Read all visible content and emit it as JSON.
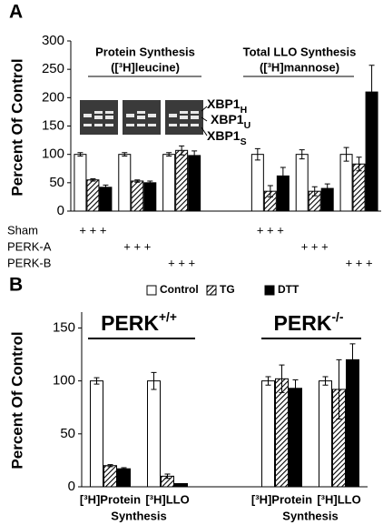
{
  "chart_data": [
    {
      "type": "bar",
      "panel_label": "A",
      "y_label": "Percent Of Control",
      "ylim": [
        0,
        300
      ],
      "yticks": [
        0,
        50,
        100,
        150,
        200,
        250,
        300
      ],
      "categories": [
        null,
        null,
        null,
        null,
        null,
        null,
        null
      ],
      "series": [
        {
          "color": "#ffffff",
          "pattern": "solid",
          "values": [
            100,
            100,
            100,
            null,
            100,
            100,
            100
          ],
          "errors": [
            3,
            3,
            3,
            null,
            10,
            8,
            12
          ]
        },
        {
          "color": "#000000",
          "pattern": "diagonal",
          "values": [
            55,
            53,
            107,
            null,
            35,
            35,
            83
          ],
          "errors": [
            2,
            2,
            8,
            null,
            10,
            8,
            12
          ]
        },
        {
          "color": "#000000",
          "pattern": "solid",
          "values": [
            42,
            50,
            98,
            null,
            62,
            40,
            210
          ],
          "errors": [
            4,
            3,
            8,
            null,
            15,
            8,
            47
          ]
        }
      ],
      "annotations": [
        {
          "text": "Protein Synthesis"
        },
        {
          "text": "([³H]leucine)"
        },
        {
          "text": "Total LLO Synthesis"
        },
        {
          "text": "([³H]mannose)"
        }
      ],
      "gel_labels": [
        {
          "text": "XBP1",
          "sub": "H"
        },
        {
          "text": "XBP1",
          "sub": "U"
        },
        {
          "text": "XBP1",
          "sub": "S"
        }
      ],
      "rows": [
        {
          "label": "Sham",
          "signs": [
            "+ + +",
            null,
            null,
            null,
            "+ + +",
            null,
            null
          ]
        },
        {
          "label": "PERK-A",
          "signs": [
            null,
            "+ + +",
            null,
            null,
            null,
            "+ + +",
            null
          ]
        },
        {
          "label": "PERK-B",
          "signs": [
            null,
            null,
            "+ + +",
            null,
            null,
            null,
            "+ + +"
          ]
        }
      ]
    },
    {
      "type": "bar",
      "panel_label": "B",
      "y_label": "Percent Of Control",
      "ylim": [
        0,
        165
      ],
      "yticks": [
        0,
        50,
        100,
        150
      ],
      "categories": [
        "[³H]Protein",
        "[³H]LLO",
        null,
        "[³H]Protein",
        "[³H]LLO"
      ],
      "legend": "top",
      "series": [
        {
          "name": "Control",
          "color": "#ffffff",
          "pattern": "solid",
          "values": [
            100,
            100,
            null,
            100,
            100
          ],
          "errors": [
            3,
            8,
            null,
            4,
            4
          ]
        },
        {
          "name": "TG",
          "color": "#000000",
          "pattern": "diagonal",
          "values": [
            20,
            10,
            null,
            102,
            92
          ],
          "errors": [
            1,
            2,
            null,
            13,
            28
          ]
        },
        {
          "name": "DTT",
          "color": "#000000",
          "pattern": "solid",
          "values": [
            17,
            3,
            null,
            93,
            120
          ],
          "errors": [
            1,
            0,
            null,
            8,
            15
          ]
        }
      ],
      "group_titles": [
        {
          "text": "PERK",
          "sup": "+/+"
        },
        {
          "text": "PERK",
          "sup": "-/-"
        }
      ],
      "footers": [
        "Synthesis",
        "Synthesis"
      ]
    }
  ]
}
